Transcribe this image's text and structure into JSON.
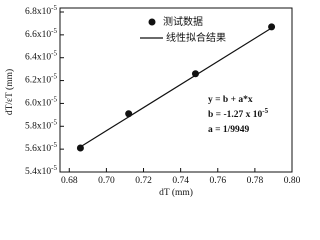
{
  "chart_data": {
    "type": "scatter",
    "x_label": "dT (mm)",
    "y_label": "dT/εT (mm)",
    "series": [
      {
        "name": "测试数据",
        "color": "#111111",
        "x": [
          0.686,
          0.712,
          0.748,
          0.789
        ],
        "values": [
          5.61e-05,
          5.91e-05,
          6.26e-05,
          6.67e-05
        ]
      }
    ],
    "fit": {
      "name": "线性拟合结果",
      "color": "#111111",
      "x": [
        0.686,
        0.789
      ],
      "values": [
        5.62e-05,
        6.66e-05
      ]
    },
    "annotations": [
      {
        "text": "y = b + a*x"
      },
      {
        "text": "b = -1.27 x 10",
        "sup": "-5"
      },
      {
        "text": "a =  1/9949"
      }
    ],
    "xlim": [
      0.675,
      0.8
    ],
    "xticks": [
      {
        "value": 0.68,
        "label": "0.68"
      },
      {
        "value": 0.7,
        "label": "0.70"
      },
      {
        "value": 0.72,
        "label": "0.72"
      },
      {
        "value": 0.74,
        "label": "0.74"
      },
      {
        "value": 0.76,
        "label": "0.76"
      },
      {
        "value": 0.78,
        "label": "0.78"
      },
      {
        "value": 0.8,
        "label": "0.80"
      }
    ],
    "ylim": [
      5.4e-05,
      6.8e-05
    ],
    "yticks": [
      {
        "value": 5.4e-05,
        "label": "5.4x10",
        "sup": "-5"
      },
      {
        "value": 5.6e-05,
        "label": "5.6x10",
        "sup": "-5"
      },
      {
        "value": 5.8e-05,
        "label": "5.8x10",
        "sup": "-5"
      },
      {
        "value": 6e-05,
        "label": "6.0x10",
        "sup": "-5"
      },
      {
        "value": 6.2e-05,
        "label": "6.2x10",
        "sup": "-5"
      },
      {
        "value": 6.4e-05,
        "label": "6.4x10",
        "sup": "-5"
      },
      {
        "value": 6.6e-05,
        "label": "6.6x10",
        "sup": "-5"
      },
      {
        "value": 6.8e-05,
        "label": "6.8x10",
        "sup": "-5"
      }
    ],
    "grid": false
  }
}
